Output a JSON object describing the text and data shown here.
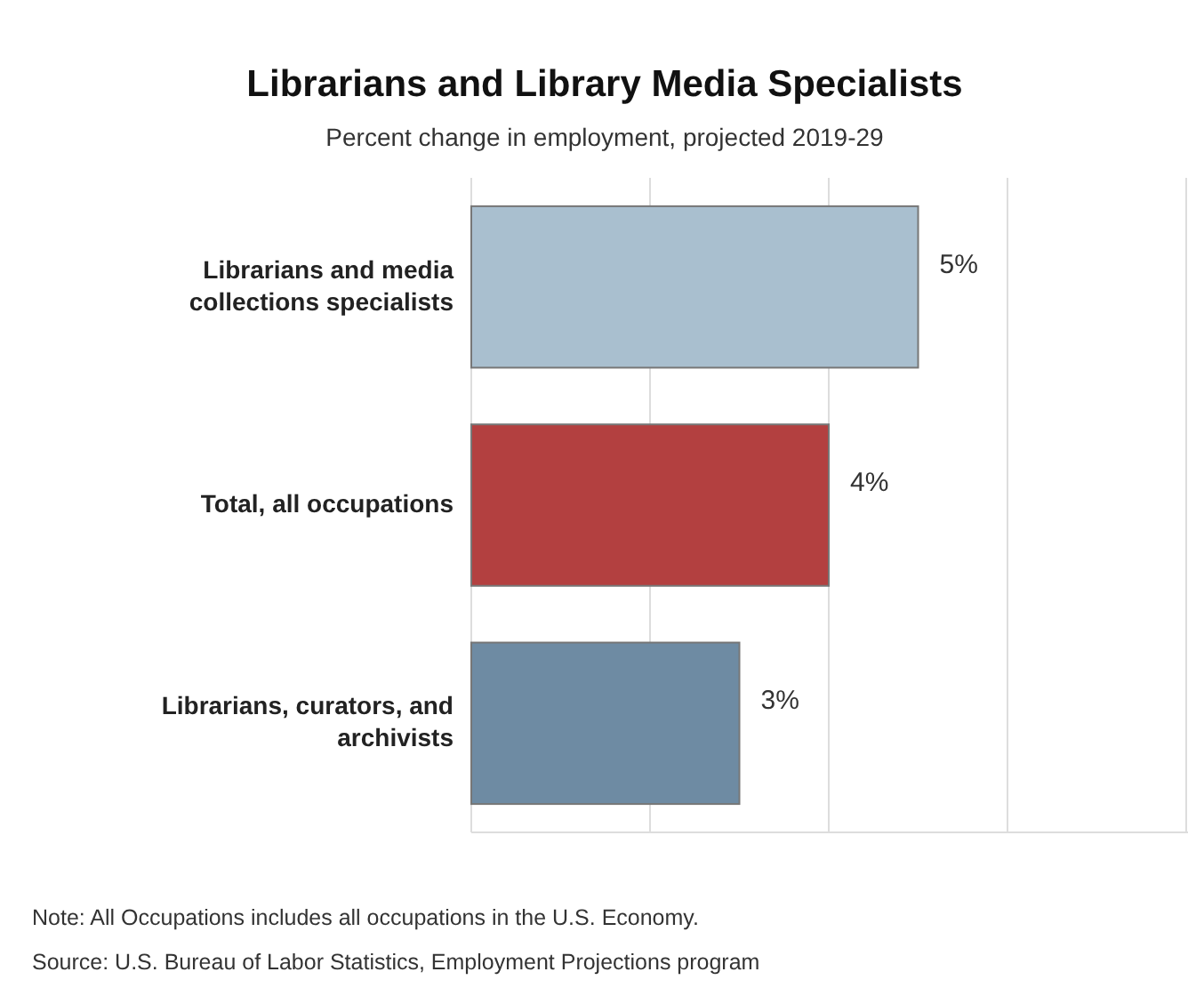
{
  "chart_data": {
    "type": "bar",
    "orientation": "horizontal",
    "title": "Librarians and Library Media Specialists",
    "subtitle": "Percent change in employment, projected 2019-29",
    "categories": [
      "Librarians and media collections specialists",
      "Total, all occupations",
      "Librarians, curators, and archivists"
    ],
    "values": [
      5,
      4,
      3
    ],
    "colors": [
      "#a9bfcf",
      "#b34040",
      "#6e8ba3"
    ],
    "value_labels": [
      "5%",
      "4%",
      "3%"
    ],
    "xlim": [
      0,
      8
    ],
    "xticks": [
      {
        "value": 0,
        "label": null
      },
      {
        "value": 2,
        "label": null
      },
      {
        "value": 4,
        "label": null
      },
      {
        "value": 6,
        "label": null
      },
      {
        "value": 8,
        "label": null
      }
    ],
    "grid": "x",
    "tick_labels": "y",
    "annotations": [
      "Note: All Occupations includes all occupations in the U.S. Economy.",
      "Source: U.S. Bureau of Labor Statistics, Employment Projections program"
    ]
  }
}
